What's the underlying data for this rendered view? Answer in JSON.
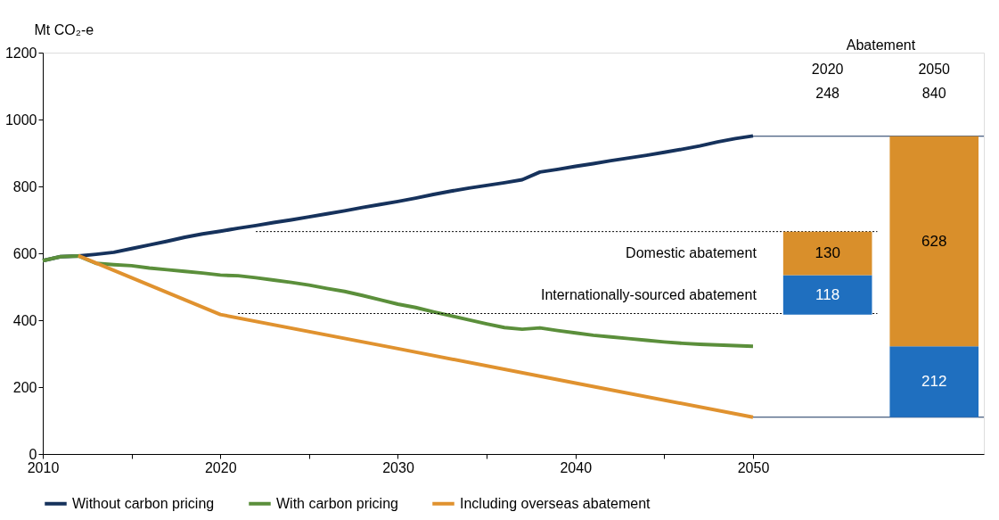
{
  "chart_data": {
    "type": "line",
    "ylabel": "Mt CO₂-e",
    "xlim": [
      2010,
      2063
    ],
    "ylim": [
      0,
      1200
    ],
    "xticks": [
      2010,
      {
        "value": 2015,
        "label": null
      },
      2020,
      {
        "value": 2025,
        "label": null
      },
      2030,
      {
        "value": 2035,
        "label": null
      },
      2040,
      {
        "value": 2045,
        "label": null
      },
      2050
    ],
    "yticks": [
      0,
      200,
      400,
      600,
      800,
      1000,
      1200
    ],
    "grid": false,
    "legend": "bottom",
    "series": [
      {
        "name": "Without carbon pricing",
        "color": "#16325c",
        "x": [
          2010,
          2011,
          2012,
          2013,
          2014,
          2015,
          2016,
          2017,
          2018,
          2019,
          2020,
          2021,
          2022,
          2023,
          2024,
          2025,
          2026,
          2027,
          2028,
          2029,
          2030,
          2031,
          2032,
          2033,
          2034,
          2035,
          2036,
          2037,
          2038,
          2039,
          2040,
          2041,
          2042,
          2043,
          2044,
          2045,
          2046,
          2047,
          2048,
          2049,
          2050
        ],
        "values": [
          578,
          590,
          592,
          597,
          603,
          614,
          625,
          636,
          648,
          658,
          666,
          675,
          683,
          692,
          700,
          709,
          718,
          727,
          737,
          746,
          755,
          765,
          776,
          786,
          795,
          803,
          811,
          820,
          843,
          851,
          860,
          868,
          877,
          885,
          893,
          902,
          911,
          921,
          933,
          943,
          951
        ]
      },
      {
        "name": "With carbon pricing",
        "color": "#5b8f3b",
        "x": [
          2010,
          2011,
          2012,
          2013,
          2014,
          2015,
          2016,
          2017,
          2018,
          2019,
          2020,
          2021,
          2022,
          2023,
          2024,
          2025,
          2026,
          2027,
          2028,
          2029,
          2030,
          2031,
          2032,
          2033,
          2034,
          2035,
          2036,
          2037,
          2038,
          2039,
          2040,
          2041,
          2042,
          2043,
          2044,
          2045,
          2046,
          2047,
          2048,
          2049,
          2050
        ],
        "values": [
          578,
          590,
          592,
          570,
          566,
          563,
          556,
          551,
          546,
          541,
          535,
          533,
          527,
          520,
          513,
          505,
          495,
          486,
          474,
          461,
          448,
          438,
          425,
          413,
          401,
          389,
          378,
          373,
          377,
          369,
          362,
          355,
          350,
          345,
          340,
          335,
          331,
          328,
          326,
          324,
          322
        ]
      },
      {
        "name": "Including overseas abatement",
        "color": "#e0922f",
        "x": [
          2012,
          2014,
          2016,
          2018,
          2020,
          2030,
          2040,
          2050
        ],
        "values": [
          593,
          549,
          505,
          461,
          417,
          315,
          212,
          110
        ]
      },
      {
        "type": "line",
        "color": "#000000",
        "line_style": "dotted",
        "x": [
          2022,
          2057
        ],
        "values": [
          665,
          665
        ]
      },
      {
        "type": "line",
        "color": "#000000",
        "line_style": "dotted",
        "x": [
          2021,
          2057
        ],
        "values": [
          420,
          420
        ]
      },
      {
        "type": "line",
        "color": "#16325c",
        "line_style": "solid",
        "x": [
          2050,
          2063
        ],
        "values": [
          950,
          950
        ]
      },
      {
        "type": "line",
        "color": "#16325c",
        "line_style": "solid",
        "x": [
          2050,
          2063
        ],
        "values": [
          110,
          110
        ]
      },
      {
        "name": "Internationally-sourced abatement",
        "type": "bar",
        "color": "#1f6fbf",
        "x": [
          2054.2,
          2060.2
        ],
        "base": [
          417,
          110
        ],
        "values": [
          118,
          212
        ],
        "value_labels": [
          "118",
          "212"
        ]
      },
      {
        "name": "Domestic abatement",
        "type": "bar",
        "color": "#d98f2b",
        "x": [
          2054.2,
          2060.2
        ],
        "base": [
          535,
          322
        ],
        "values": [
          130,
          628
        ],
        "value_labels": [
          "130",
          "628"
        ]
      }
    ],
    "annotations": [
      "Abatement",
      "2020",
      "248",
      "2050",
      "840"
    ]
  }
}
